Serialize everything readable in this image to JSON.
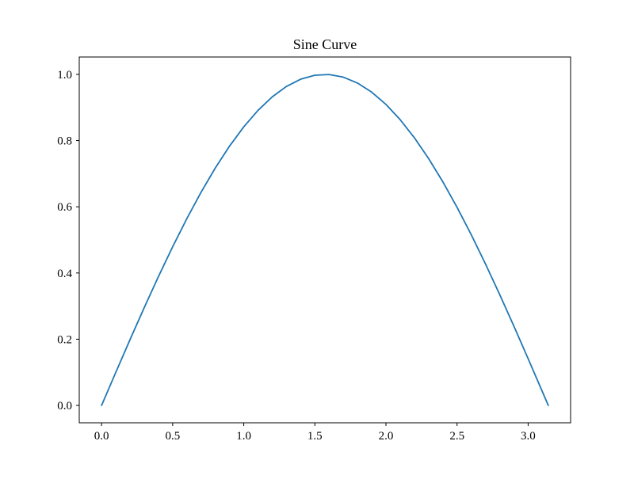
{
  "chart_data": {
    "type": "line",
    "title": "Sine Curve",
    "xlabel": "",
    "ylabel": "",
    "grid": false,
    "legend": "none",
    "background_color": "#ffffff",
    "axes_edge_color": "#000000",
    "tick_color": "#000000",
    "xlim": [
      -0.15708,
      3.29867
    ],
    "ylim": [
      -0.0525,
      1.0525
    ],
    "xticks": [
      0.0,
      0.5,
      1.0,
      1.5,
      2.0,
      2.5,
      3.0
    ],
    "xtick_labels": [
      "0.0",
      "0.5",
      "1.0",
      "1.5",
      "2.0",
      "2.5",
      "3.0"
    ],
    "yticks": [
      0.0,
      0.2,
      0.4,
      0.6,
      0.8,
      1.0
    ],
    "ytick_labels": [
      "0.0",
      "0.2",
      "0.4",
      "0.6",
      "0.8",
      "1.0"
    ],
    "x": [
      0,
      0.1,
      0.2,
      0.3,
      0.4,
      0.5,
      0.6,
      0.7,
      0.8,
      0.9,
      1.0,
      1.1,
      1.2,
      1.3,
      1.4,
      1.5,
      1.6,
      1.7,
      1.8,
      1.9,
      2.0,
      2.1,
      2.2,
      2.3,
      2.4,
      2.5,
      2.6,
      2.7,
      2.8,
      2.9,
      3.0,
      3.1,
      3.14159
    ],
    "series": [
      {
        "color": "#1f77b4",
        "line_width": 1.8,
        "values": [
          0,
          0.0998,
          0.1987,
          0.2955,
          0.3894,
          0.4794,
          0.5646,
          0.6442,
          0.7174,
          0.7833,
          0.8415,
          0.8912,
          0.932,
          0.9636,
          0.9854,
          0.9975,
          0.9996,
          0.9917,
          0.9738,
          0.9463,
          0.9093,
          0.8632,
          0.8085,
          0.7457,
          0.6755,
          0.5985,
          0.5155,
          0.4274,
          0.335,
          0.2392,
          0.1411,
          0.0416,
          0
        ]
      }
    ]
  }
}
